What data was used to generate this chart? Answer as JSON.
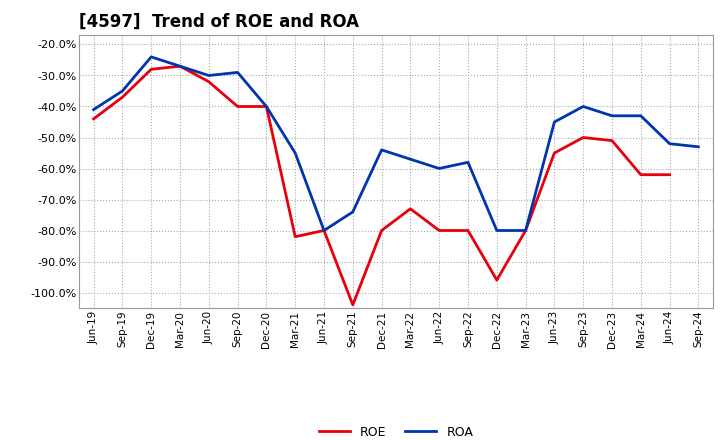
{
  "title": "[4597]  Trend of ROE and ROA",
  "labels": [
    "Jun-19",
    "Sep-19",
    "Dec-19",
    "Mar-20",
    "Jun-20",
    "Sep-20",
    "Dec-20",
    "Mar-21",
    "Jun-21",
    "Sep-21",
    "Dec-21",
    "Mar-22",
    "Jun-22",
    "Sep-22",
    "Dec-22",
    "Mar-23",
    "Jun-23",
    "Sep-23",
    "Dec-23",
    "Mar-24",
    "Jun-24",
    "Sep-24"
  ],
  "ROE": [
    -44,
    -37,
    -28,
    -27,
    -32,
    -40,
    -40,
    -82,
    -80,
    -104,
    -80,
    -73,
    -80,
    -80,
    -96,
    -80,
    -55,
    -50,
    -51,
    -62,
    -62,
    null
  ],
  "ROA": [
    -41,
    -35,
    -24,
    -27,
    -30,
    -29,
    -40,
    -55,
    -80,
    -74,
    -54,
    -57,
    -60,
    -58,
    -80,
    -80,
    -45,
    -40,
    -43,
    -43,
    -52,
    -53
  ],
  "roe_color": "#e8000d",
  "roa_color": "#0035ad",
  "background_color": "#ffffff",
  "plot_bg_color": "#ffffff",
  "grid_color": "#aaaaaa",
  "ylim": [
    -105,
    -17
  ],
  "yticks": [
    -20,
    -30,
    -40,
    -50,
    -60,
    -70,
    -80,
    -90,
    -100
  ],
  "linewidth": 2.0,
  "title_fontsize": 12
}
